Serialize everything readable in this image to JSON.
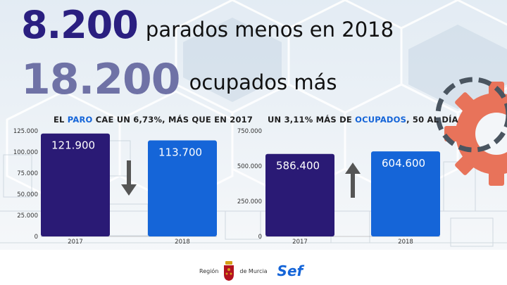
{
  "headline1": {
    "number": "8.200",
    "text": "parados menos en 2018"
  },
  "headline2": {
    "number": "18.200",
    "text": "ocupados más"
  },
  "chart_data": [
    {
      "type": "bar",
      "title_parts": [
        "EL ",
        "PARO",
        " CAE UN 6,73%, MÁS QUE EN 2017"
      ],
      "categories": [
        "2017",
        "2018"
      ],
      "values": [
        121900,
        113700
      ],
      "value_labels": [
        "121.900",
        "113.700"
      ],
      "yticks": [
        "0",
        "25.000",
        "50.000",
        "75.000",
        "100.000",
        "125.000"
      ],
      "ytick_values": [
        0,
        25000,
        50000,
        75000,
        100000,
        125000
      ],
      "ylim": [
        0,
        125000
      ],
      "bar_colors": [
        "#2a1a75",
        "#1565d8"
      ],
      "trend": "down"
    },
    {
      "type": "bar",
      "title_parts": [
        "UN 3,11% MÁS DE ",
        "OCUPADOS",
        ", 50 AL DÍA"
      ],
      "categories": [
        "2017",
        "2018"
      ],
      "values": [
        586400,
        604600
      ],
      "value_labels": [
        "586.400",
        "604.600"
      ],
      "yticks": [
        "0",
        "250.000",
        "500.000",
        "750.000"
      ],
      "ytick_values": [
        0,
        250000,
        500000,
        750000
      ],
      "ylim": [
        0,
        750000
      ],
      "bar_colors": [
        "#2a1a75",
        "#1565d8"
      ],
      "trend": "up"
    }
  ],
  "footer": {
    "region": "Región",
    "de_murcia": "de Murcia",
    "brand": "Sef"
  },
  "colors": {
    "dark_blue": "#2a1f80",
    "accent_blue": "#1565d8",
    "gear": "#e8735a"
  }
}
